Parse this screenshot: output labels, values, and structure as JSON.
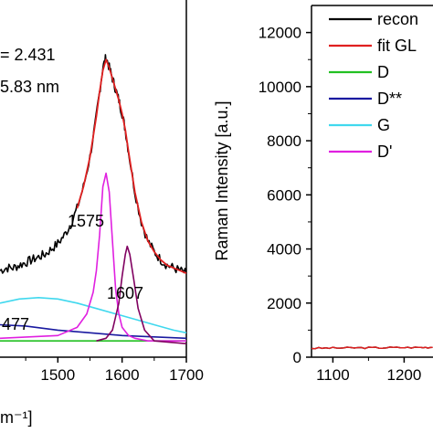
{
  "chart_data": [
    {
      "type": "line",
      "xlabel": "m⁻¹]",
      "ylabel": "",
      "xlim": [
        1410,
        1700
      ],
      "ylim": [
        -0.05,
        1.25
      ],
      "xticks": [
        1500,
        1600,
        1700
      ],
      "annotations": {
        "ratio_text": "= 2.431",
        "size_text": "5.83 nm",
        "peak_1575": "1575",
        "peak_1607": "1607",
        "peak_1477": "477"
      },
      "series": [
        {
          "name": "reconstructed",
          "color": "#000000",
          "x": [
            1410,
            1420,
            1430,
            1440,
            1450,
            1460,
            1470,
            1480,
            1490,
            1500,
            1510,
            1520,
            1530,
            1540,
            1550,
            1560,
            1565,
            1570,
            1575,
            1580,
            1585,
            1590,
            1595,
            1600,
            1605,
            1610,
            1620,
            1630,
            1640,
            1650,
            1660,
            1670,
            1680,
            1690,
            1700
          ],
          "y": [
            0.27,
            0.28,
            0.28,
            0.29,
            0.3,
            0.31,
            0.32,
            0.33,
            0.35,
            0.37,
            0.4,
            0.44,
            0.5,
            0.58,
            0.69,
            0.84,
            0.93,
            1.02,
            1.06,
            1.02,
            0.98,
            0.94,
            0.9,
            0.85,
            0.79,
            0.71,
            0.56,
            0.45,
            0.38,
            0.34,
            0.31,
            0.29,
            0.28,
            0.27,
            0.26
          ]
        },
        {
          "name": "fit GL",
          "color": "#e02020",
          "x": [
            1530,
            1540,
            1550,
            1560,
            1565,
            1570,
            1575,
            1580,
            1585,
            1590,
            1595,
            1600,
            1605,
            1610,
            1620,
            1630,
            1640,
            1650,
            1660,
            1670,
            1680,
            1690,
            1700
          ],
          "y": [
            0.5,
            0.58,
            0.69,
            0.84,
            0.93,
            1.01,
            1.05,
            1.02,
            0.98,
            0.94,
            0.9,
            0.85,
            0.79,
            0.71,
            0.56,
            0.45,
            0.38,
            0.34,
            0.31,
            0.29,
            0.28,
            0.27,
            0.26
          ]
        },
        {
          "name": "D",
          "color": "#22c022",
          "x": [
            1410,
            1500,
            1600,
            1700
          ],
          "y": [
            0.01,
            0.01,
            0.01,
            0.01
          ]
        },
        {
          "name": "D**",
          "color": "#1a1aa0",
          "x": [
            1410,
            1450,
            1500,
            1550,
            1600,
            1650,
            1700
          ],
          "y": [
            0.07,
            0.065,
            0.05,
            0.04,
            0.03,
            0.025,
            0.02
          ]
        },
        {
          "name": "G",
          "color": "#40d8ee",
          "x": [
            1410,
            1440,
            1470,
            1500,
            1530,
            1560,
            1590,
            1620,
            1650,
            1680,
            1700
          ],
          "y": [
            0.15,
            0.165,
            0.17,
            0.165,
            0.15,
            0.13,
            0.11,
            0.09,
            0.07,
            0.05,
            0.04
          ]
        },
        {
          "name": "D'",
          "color": "#e020e0",
          "x": [
            1410,
            1500,
            1530,
            1545,
            1555,
            1560,
            1565,
            1570,
            1575,
            1580,
            1585,
            1590,
            1595,
            1600,
            1610,
            1620,
            1640,
            1700
          ],
          "y": [
            0.02,
            0.03,
            0.06,
            0.11,
            0.19,
            0.27,
            0.4,
            0.58,
            0.63,
            0.56,
            0.38,
            0.2,
            0.11,
            0.06,
            0.03,
            0.02,
            0.01,
            0.01
          ]
        },
        {
          "name": "1607",
          "color": "#800060",
          "x": [
            1560,
            1575,
            1585,
            1595,
            1600,
            1605,
            1608,
            1612,
            1618,
            1625,
            1635,
            1650,
            1700
          ],
          "y": [
            0.01,
            0.02,
            0.05,
            0.15,
            0.25,
            0.33,
            0.36,
            0.33,
            0.24,
            0.13,
            0.05,
            0.01,
            0.0
          ]
        }
      ]
    },
    {
      "type": "line",
      "xlabel": "",
      "ylabel": "Raman Intensity [a.u.]",
      "xlim": [
        1070,
        1240
      ],
      "ylim": [
        0,
        13000
      ],
      "xticks": [
        1100,
        1200
      ],
      "yticks": [
        0,
        2000,
        4000,
        6000,
        8000,
        10000,
        12000
      ],
      "legend_position": "top-right",
      "legend": [
        {
          "label": "recon",
          "color": "#000000"
        },
        {
          "label": "fit GL",
          "color": "#e02020"
        },
        {
          "label": "D",
          "color": "#22c022"
        },
        {
          "label": "D**",
          "color": "#1a1aa0"
        },
        {
          "label": "G",
          "color": "#40d8ee"
        },
        {
          "label": "D'",
          "color": "#e020e0"
        }
      ],
      "series": [
        {
          "name": "recon",
          "color": "#000000",
          "x": [
            1070,
            1100,
            1130,
            1160,
            1190,
            1220,
            1240
          ],
          "y": [
            330,
            340,
            345,
            350,
            355,
            360,
            365
          ]
        },
        {
          "name": "fit GL",
          "color": "#e02020",
          "x": [
            1070,
            1100,
            1130,
            1160,
            1190,
            1220,
            1240
          ],
          "y": [
            330,
            340,
            345,
            350,
            355,
            360,
            365
          ]
        }
      ]
    }
  ]
}
